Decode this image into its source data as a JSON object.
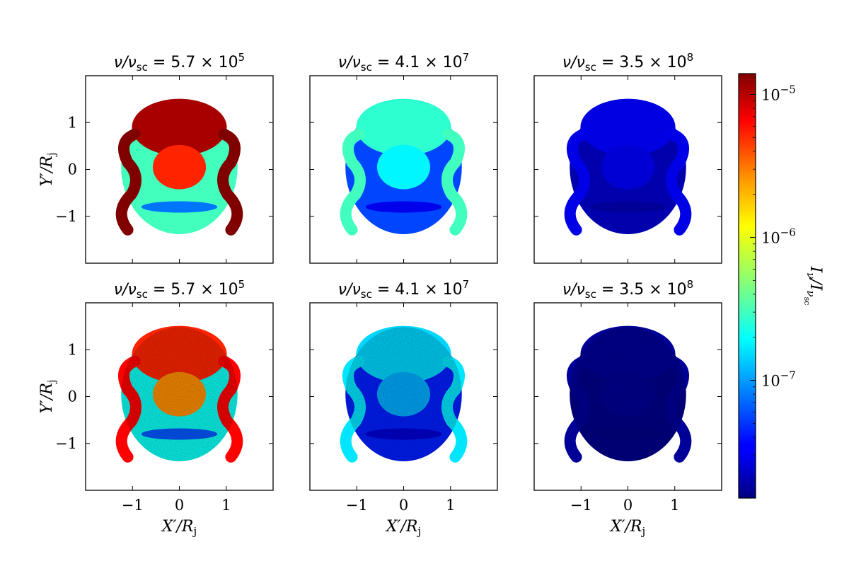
{
  "chart_data": {
    "type": "heatmap",
    "layout": {
      "rows": 2,
      "cols": 3
    },
    "panels": [
      {
        "title": {
          "prefix": "ν/ν",
          "sub": "sc",
          "mid": " = 5.7 × 10",
          "sup": "5"
        },
        "level": 0.8,
        "noisy": false
      },
      {
        "title": {
          "prefix": "ν/ν",
          "sub": "sc",
          "mid": " = 4.1 × 10",
          "sup": "7"
        },
        "level": 0.35,
        "noisy": false
      },
      {
        "title": {
          "prefix": "ν/ν",
          "sub": "sc",
          "mid": " = 3.5 × 10",
          "sup": "8"
        },
        "level": 0.08,
        "noisy": false
      },
      {
        "title": {
          "prefix": "ν/ν",
          "sub": "sc",
          "mid": " = 5.7 × 10",
          "sup": "5"
        },
        "level": 0.7,
        "noisy": true
      },
      {
        "title": {
          "prefix": "ν/ν",
          "sub": "sc",
          "mid": " = 4.1 × 10",
          "sup": "7"
        },
        "level": 0.28,
        "noisy": true
      },
      {
        "title": {
          "prefix": "ν/ν",
          "sub": "sc",
          "mid": " = 3.5 × 10",
          "sup": "8"
        },
        "level": 0.02,
        "noisy": true
      }
    ],
    "x_axis": {
      "label": {
        "main": "X′/R",
        "sub": "j"
      },
      "lim": [
        -2,
        2
      ],
      "ticks": [
        -1,
        0,
        1
      ],
      "tick_labels": [
        "−1",
        "0",
        "1"
      ]
    },
    "y_axis": {
      "label": {
        "main": "Y′/R",
        "sub": "j"
      },
      "lim": [
        -2,
        2
      ],
      "ticks": [
        1,
        0,
        -1
      ],
      "tick_labels": [
        "1",
        "0",
        "−1"
      ]
    },
    "colorbar": {
      "label": {
        "main": "I",
        "sub1": "ν",
        "slash": "/I",
        "sub2": "ν",
        "sub3": "sc"
      },
      "scale": "log",
      "range": [
        1.5e-08,
        1.4e-05
      ],
      "ticks": [
        {
          "value": 1e-05,
          "label": "10",
          "exp": "−5"
        },
        {
          "value": 1e-06,
          "label": "10",
          "exp": "−6"
        },
        {
          "value": 1e-07,
          "label": "10",
          "exp": "−7"
        }
      ],
      "colormap": "jet"
    }
  }
}
